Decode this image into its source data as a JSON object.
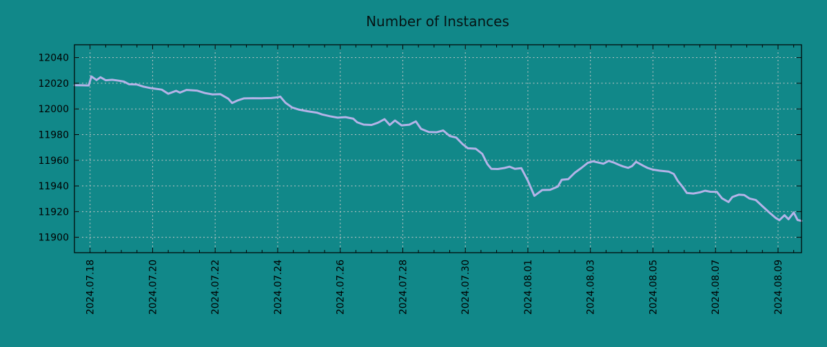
{
  "colors": {
    "background": "#118889",
    "line": "#b4b3e8",
    "grid": "#c9c9c9",
    "axis": "#000000"
  },
  "chart_data": {
    "type": "line",
    "title": "Number of Instances",
    "xlabel": "",
    "ylabel": "",
    "legend": "none",
    "grid": "dashed major gridlines, both axes",
    "x_axis": {
      "type": "datetime",
      "start": "2024-07-17 12:00",
      "end": "2024-08-09 18:00",
      "major_ticks": [
        {
          "date": "2024-07-18 00:00",
          "label": "2024.07.18"
        },
        {
          "date": "2024-07-20 00:00",
          "label": "2024.07.20"
        },
        {
          "date": "2024-07-22 00:00",
          "label": "2024.07.22"
        },
        {
          "date": "2024-07-24 00:00",
          "label": "2024.07.24"
        },
        {
          "date": "2024-07-26 00:00",
          "label": "2024.07.26"
        },
        {
          "date": "2024-07-28 00:00",
          "label": "2024.07.28"
        },
        {
          "date": "2024-07-30 00:00",
          "label": "2024.07.30"
        },
        {
          "date": "2024-08-01 00:00",
          "label": "2024.08.01"
        },
        {
          "date": "2024-08-03 00:00",
          "label": "2024.08.03"
        },
        {
          "date": "2024-08-05 00:00",
          "label": "2024.08.05"
        },
        {
          "date": "2024-08-07 00:00",
          "label": "2024.08.07"
        },
        {
          "date": "2024-08-09 00:00",
          "label": "2024.08.09"
        }
      ],
      "minor_tick_interval_days": 0.5,
      "tick_label_rotation_deg": 90
    },
    "y_axis": {
      "min": 11888,
      "max": 12050,
      "ticks": [
        11900,
        11920,
        11940,
        11960,
        11980,
        12000,
        12020,
        12040
      ]
    },
    "series": [
      {
        "name": "instances",
        "color": "#b4b3e8",
        "points": [
          [
            "2024-07-17 12:00",
            12018.5
          ],
          [
            "2024-07-17 18:00",
            12018.4
          ],
          [
            "2024-07-17 23:00",
            12018.3
          ],
          [
            "2024-07-18 01:00",
            12025.3
          ],
          [
            "2024-07-18 05:00",
            12022.5
          ],
          [
            "2024-07-18 08:00",
            12024.7
          ],
          [
            "2024-07-18 12:00",
            12022.3
          ],
          [
            "2024-07-18 17:00",
            12022.7
          ],
          [
            "2024-07-18 22:00",
            12022.0
          ],
          [
            "2024-07-19 02:00",
            12021.3
          ],
          [
            "2024-07-19 06:00",
            12019.2
          ],
          [
            "2024-07-19 12:00",
            12019.0
          ],
          [
            "2024-07-19 17:00",
            12017.4
          ],
          [
            "2024-07-19 22:00",
            12016.3
          ],
          [
            "2024-07-20 02:00",
            12015.7
          ],
          [
            "2024-07-20 07:00",
            12015.0
          ],
          [
            "2024-07-20 12:00",
            12011.8
          ],
          [
            "2024-07-20 18:00",
            12014.1
          ],
          [
            "2024-07-20 21:00",
            12012.7
          ],
          [
            "2024-07-21 02:00",
            12014.8
          ],
          [
            "2024-07-21 10:00",
            12014.3
          ],
          [
            "2024-07-21 16:00",
            12012.4
          ],
          [
            "2024-07-21 22:00",
            12011.3
          ],
          [
            "2024-07-22 04:00",
            12011.5
          ],
          [
            "2024-07-22 10:00",
            12008.0
          ],
          [
            "2024-07-22 13:00",
            12004.6
          ],
          [
            "2024-07-22 17:00",
            12006.5
          ],
          [
            "2024-07-22 22:00",
            12008.2
          ],
          [
            "2024-07-23 05:00",
            12008.4
          ],
          [
            "2024-07-23 12:00",
            12008.3
          ],
          [
            "2024-07-23 19:00",
            12008.5
          ],
          [
            "2024-07-24 00:00",
            12009.0
          ],
          [
            "2024-07-24 02:00",
            12009.6
          ],
          [
            "2024-07-24 06:00",
            12004.8
          ],
          [
            "2024-07-24 11:00",
            12001.2
          ],
          [
            "2024-07-24 16:00",
            11999.5
          ],
          [
            "2024-07-24 23:00",
            11998.2
          ],
          [
            "2024-07-25 06:00",
            11997.1
          ],
          [
            "2024-07-25 10:00",
            11995.7
          ],
          [
            "2024-07-25 16:00",
            11994.3
          ],
          [
            "2024-07-25 22:00",
            11993.2
          ],
          [
            "2024-07-26 04:00",
            11993.6
          ],
          [
            "2024-07-26 10:00",
            11992.4
          ],
          [
            "2024-07-26 13:00",
            11989.6
          ],
          [
            "2024-07-26 18:00",
            11987.8
          ],
          [
            "2024-07-27 00:00",
            11987.5
          ],
          [
            "2024-07-27 05:00",
            11989.3
          ],
          [
            "2024-07-27 10:00",
            11992.0
          ],
          [
            "2024-07-27 14:00",
            11987.5
          ],
          [
            "2024-07-27 18:00",
            11991.0
          ],
          [
            "2024-07-27 23:00",
            11987.2
          ],
          [
            "2024-07-28 05:00",
            11987.7
          ],
          [
            "2024-07-28 10:00",
            11990.3
          ],
          [
            "2024-07-28 14:00",
            11984.5
          ],
          [
            "2024-07-28 20:00",
            11982.0
          ],
          [
            "2024-07-29 02:00",
            11981.8
          ],
          [
            "2024-07-29 07:00",
            11983.2
          ],
          [
            "2024-07-29 12:00",
            11978.9
          ],
          [
            "2024-07-29 17:00",
            11977.7
          ],
          [
            "2024-07-29 22:00",
            11972.5
          ],
          [
            "2024-07-30 02:00",
            11969.3
          ],
          [
            "2024-07-30 08:00",
            11969.0
          ],
          [
            "2024-07-30 13:00",
            11965.0
          ],
          [
            "2024-07-30 17:00",
            11957.0
          ],
          [
            "2024-07-30 20:00",
            11953.3
          ],
          [
            "2024-07-31 01:00",
            11953.2
          ],
          [
            "2024-07-31 06:00",
            11954.0
          ],
          [
            "2024-07-31 10:00",
            11955.0
          ],
          [
            "2024-07-31 14:00",
            11953.3
          ],
          [
            "2024-07-31 19:00",
            11953.8
          ],
          [
            "2024-08-01 00:00",
            11944.0
          ],
          [
            "2024-08-01 05:00",
            11932.3
          ],
          [
            "2024-08-01 11:00",
            11936.8
          ],
          [
            "2024-08-01 17:00",
            11937.0
          ],
          [
            "2024-08-01 23:00",
            11939.5
          ],
          [
            "2024-08-02 02:00",
            11944.8
          ],
          [
            "2024-08-02 07:00",
            11945.3
          ],
          [
            "2024-08-02 12:00",
            11950.3
          ],
          [
            "2024-08-02 17:00",
            11954.0
          ],
          [
            "2024-08-02 22:00",
            11958.0
          ],
          [
            "2024-08-03 02:00",
            11959.2
          ],
          [
            "2024-08-03 06:00",
            11958.2
          ],
          [
            "2024-08-03 10:00",
            11957.3
          ],
          [
            "2024-08-03 14:00",
            11959.5
          ],
          [
            "2024-08-03 18:00",
            11958.2
          ],
          [
            "2024-08-03 22:00",
            11956.4
          ],
          [
            "2024-08-04 01:00",
            11955.2
          ],
          [
            "2024-08-04 05:00",
            11954.1
          ],
          [
            "2024-08-04 08:00",
            11955.5
          ],
          [
            "2024-08-04 11:00",
            11958.8
          ],
          [
            "2024-08-04 13:00",
            11957.7
          ],
          [
            "2024-08-04 17:00",
            11955.5
          ],
          [
            "2024-08-04 20:00",
            11954.0
          ],
          [
            "2024-08-05 00:00",
            11952.7
          ],
          [
            "2024-08-05 05:00",
            11951.9
          ],
          [
            "2024-08-05 12:00",
            11951.2
          ],
          [
            "2024-08-05 16:00",
            11949.3
          ],
          [
            "2024-08-05 19:00",
            11944.0
          ],
          [
            "2024-08-05 23:00",
            11939.0
          ],
          [
            "2024-08-06 02:00",
            11934.5
          ],
          [
            "2024-08-06 07:00",
            11934.1
          ],
          [
            "2024-08-06 12:00",
            11935.0
          ],
          [
            "2024-08-06 16:00",
            11936.3
          ],
          [
            "2024-08-06 20:00",
            11935.5
          ],
          [
            "2024-08-07 01:00",
            11935.4
          ],
          [
            "2024-08-07 05:00",
            11930.3
          ],
          [
            "2024-08-07 10:00",
            11927.5
          ],
          [
            "2024-08-07 13:00",
            11931.4
          ],
          [
            "2024-08-07 18:00",
            11933.2
          ],
          [
            "2024-08-07 22:00",
            11932.9
          ],
          [
            "2024-08-08 02:00",
            11930.2
          ],
          [
            "2024-08-08 07:00",
            11929.0
          ],
          [
            "2024-08-08 12:00",
            11924.2
          ],
          [
            "2024-08-08 17:00",
            11919.6
          ],
          [
            "2024-08-08 22:00",
            11915.2
          ],
          [
            "2024-08-09 01:00",
            11913.3
          ],
          [
            "2024-08-09 05:00",
            11917.2
          ],
          [
            "2024-08-09 08:00",
            11914.0
          ],
          [
            "2024-08-09 12:00",
            11919.3
          ],
          [
            "2024-08-09 15:00",
            11913.5
          ],
          [
            "2024-08-09 18:00",
            11912.8
          ]
        ]
      }
    ]
  }
}
